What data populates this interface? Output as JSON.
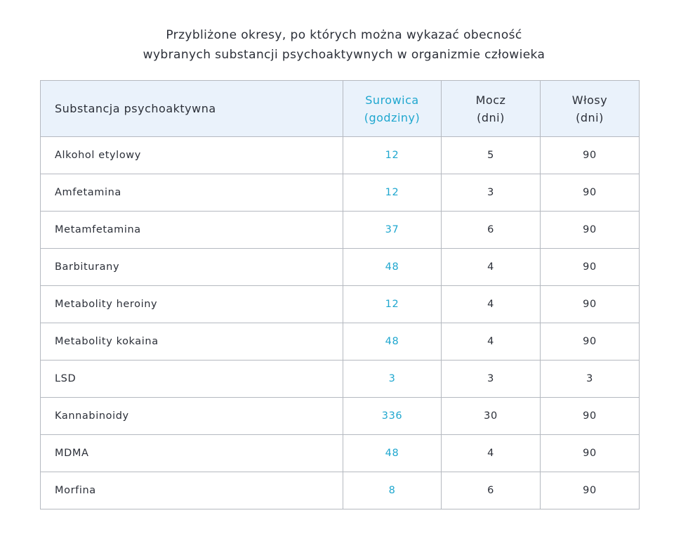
{
  "title": {
    "line1": "Przybliżone okresy, po których można wykazać obecność",
    "line2": "wybranych substancji psychoaktywnych w organizmie człowieka"
  },
  "colors": {
    "accent": "#1fa7cf",
    "header_bg": "#eaf2fb",
    "text": "#2b2f38",
    "border": "#b5b9c0"
  },
  "chart_data": {
    "type": "table",
    "columns": [
      {
        "line1": "Substancja psychoaktywna",
        "line2": ""
      },
      {
        "line1": "Surowica",
        "line2": "(godziny)"
      },
      {
        "line1": "Mocz",
        "line2": "(dni)"
      },
      {
        "line1": "Włosy",
        "line2": "(dni)"
      }
    ],
    "rows": [
      [
        "Alkohol etylowy",
        "12",
        "5",
        "90"
      ],
      [
        "Amfetamina",
        "12",
        "3",
        "90"
      ],
      [
        "Metamfetamina",
        "37",
        "6",
        "90"
      ],
      [
        "Barbiturany",
        "48",
        "4",
        "90"
      ],
      [
        "Metabolity heroiny",
        "12",
        "4",
        "90"
      ],
      [
        "Metabolity kokaina",
        "48",
        "4",
        "90"
      ],
      [
        "LSD",
        "3",
        "3",
        "3"
      ],
      [
        "Kannabinoidy",
        "336",
        "30",
        "90"
      ],
      [
        "MDMA",
        "48",
        "4",
        "90"
      ],
      [
        "Morfina",
        "8",
        "6",
        "90"
      ]
    ]
  }
}
